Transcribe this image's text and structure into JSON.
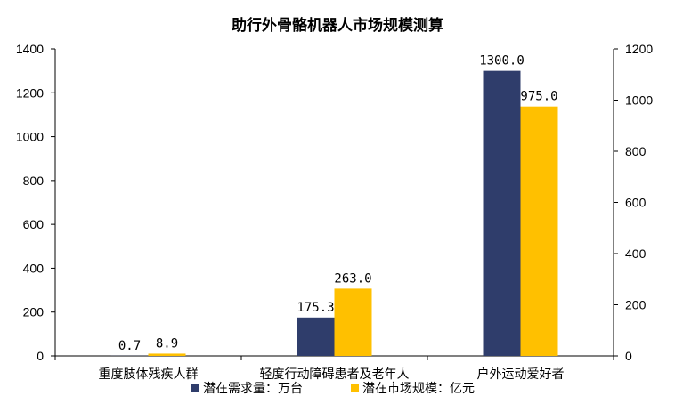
{
  "chart_data": {
    "type": "bar",
    "title": "助行外骨骼机器人市场规模测算",
    "categories": [
      "重度肢体残疾人群",
      "轻度行动障碍患者及老年人",
      "户外运动爱好者"
    ],
    "series": [
      {
        "name": "潜在需求量：万台",
        "axis": "left",
        "color": "#2f3d6b",
        "values": [
          0.7,
          175.3,
          1300.0
        ],
        "labels": [
          "0.7",
          "175.3",
          "1300.0"
        ]
      },
      {
        "name": "潜在市场规模：亿元",
        "axis": "right",
        "color": "#ffc000",
        "values": [
          8.9,
          263.0,
          975.0
        ],
        "labels": [
          "8.9",
          "263.0",
          "975.0"
        ]
      }
    ],
    "y_left": {
      "lim": [
        0,
        1400
      ],
      "ticks": [
        "0",
        "200",
        "400",
        "600",
        "800",
        "1000",
        "1200",
        "1400"
      ]
    },
    "y_right": {
      "lim": [
        0,
        1200
      ],
      "ticks": [
        "0",
        "200",
        "400",
        "600",
        "800",
        "1000",
        "1200"
      ]
    },
    "grid": false,
    "legend_position": "bottom"
  }
}
